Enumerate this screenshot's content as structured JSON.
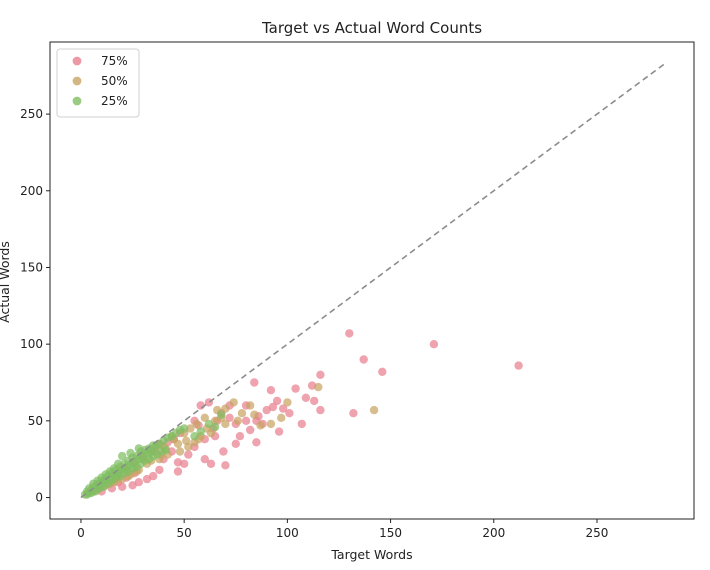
{
  "chart_data": {
    "type": "scatter",
    "title": "Target vs Actual Word Counts",
    "xlabel": "Target Words",
    "ylabel": "Actual Words",
    "xlim": [
      -15,
      297
    ],
    "ylim": [
      -14,
      297
    ],
    "xticks": [
      0,
      50,
      100,
      150,
      200,
      250
    ],
    "yticks": [
      0,
      50,
      100,
      150,
      200,
      250
    ],
    "grid": false,
    "legend_position": "top-left",
    "reference_line": {
      "from": [
        0,
        0
      ],
      "to": [
        283,
        283
      ],
      "style": "dashed",
      "color": "#8c8c8c"
    },
    "series": [
      {
        "name": "75%",
        "color": "#e8808f",
        "points": [
          [
            130,
            107
          ],
          [
            171,
            100
          ],
          [
            212,
            86
          ],
          [
            137,
            90
          ],
          [
            146,
            82
          ],
          [
            132,
            55
          ],
          [
            116,
            80
          ],
          [
            112,
            73
          ],
          [
            104,
            71
          ],
          [
            113,
            63
          ],
          [
            109,
            65
          ],
          [
            95,
            63
          ],
          [
            98,
            58
          ],
          [
            93,
            59
          ],
          [
            90,
            57
          ],
          [
            86,
            53
          ],
          [
            85,
            36
          ],
          [
            96,
            43
          ],
          [
            88,
            48
          ],
          [
            80,
            50
          ],
          [
            82,
            44
          ],
          [
            75,
            48
          ],
          [
            72,
            52
          ],
          [
            77,
            40
          ],
          [
            69,
            30
          ],
          [
            63,
            22
          ],
          [
            70,
            21
          ],
          [
            62,
            62
          ],
          [
            58,
            60
          ],
          [
            68,
            55
          ],
          [
            64,
            45
          ],
          [
            60,
            38
          ],
          [
            55,
            33
          ],
          [
            52,
            28
          ],
          [
            50,
            22
          ],
          [
            47,
            17
          ],
          [
            44,
            30
          ],
          [
            40,
            25
          ],
          [
            38,
            18
          ],
          [
            35,
            14
          ],
          [
            32,
            12
          ],
          [
            28,
            10
          ],
          [
            25,
            8
          ],
          [
            20,
            7
          ],
          [
            15,
            6
          ],
          [
            10,
            4
          ],
          [
            55,
            50
          ],
          [
            48,
            42
          ],
          [
            42,
            36
          ],
          [
            36,
            30
          ],
          [
            30,
            26
          ],
          [
            66,
            50
          ],
          [
            72,
            60
          ],
          [
            84,
            75
          ],
          [
            101,
            55
          ],
          [
            107,
            48
          ],
          [
            116,
            57
          ],
          [
            92,
            70
          ],
          [
            80,
            60
          ],
          [
            57,
            47
          ],
          [
            45,
            38
          ],
          [
            38,
            35
          ],
          [
            26,
            16
          ],
          [
            22,
            13
          ],
          [
            18,
            10
          ],
          [
            65,
            40
          ],
          [
            85,
            50
          ],
          [
            75,
            35
          ],
          [
            60,
            25
          ],
          [
            47,
            23
          ]
        ]
      },
      {
        "name": "50%",
        "color": "#c9a464",
        "points": [
          [
            142,
            57
          ],
          [
            115,
            72
          ],
          [
            100,
            62
          ],
          [
            92,
            48
          ],
          [
            97,
            52
          ],
          [
            87,
            47
          ],
          [
            82,
            60
          ],
          [
            78,
            55
          ],
          [
            74,
            62
          ],
          [
            70,
            58
          ],
          [
            65,
            50
          ],
          [
            61,
            45
          ],
          [
            58,
            40
          ],
          [
            55,
            36
          ],
          [
            52,
            33
          ],
          [
            50,
            42
          ],
          [
            48,
            30
          ],
          [
            45,
            38
          ],
          [
            42,
            28
          ],
          [
            40,
            33
          ],
          [
            38,
            25
          ],
          [
            35,
            30
          ],
          [
            32,
            22
          ],
          [
            30,
            25
          ],
          [
            28,
            18
          ],
          [
            26,
            22
          ],
          [
            24,
            15
          ],
          [
            22,
            18
          ],
          [
            20,
            12
          ],
          [
            18,
            14
          ],
          [
            16,
            10
          ],
          [
            14,
            9
          ],
          [
            12,
            8
          ],
          [
            10,
            7
          ],
          [
            8,
            5
          ],
          [
            6,
            4
          ],
          [
            60,
            52
          ],
          [
            56,
            48
          ],
          [
            53,
            45
          ],
          [
            66,
            57
          ],
          [
            70,
            48
          ],
          [
            76,
            50
          ],
          [
            84,
            54
          ],
          [
            44,
            40
          ],
          [
            37,
            34
          ],
          [
            33,
            29
          ],
          [
            29,
            27
          ],
          [
            25,
            23
          ],
          [
            21,
            19
          ],
          [
            47,
            35
          ],
          [
            39,
            28
          ],
          [
            34,
            24
          ],
          [
            27,
            17
          ],
          [
            23,
            14
          ],
          [
            17,
            11
          ],
          [
            63,
            42
          ],
          [
            68,
            52
          ],
          [
            57,
            38
          ],
          [
            51,
            37
          ],
          [
            41,
            32
          ]
        ]
      },
      {
        "name": "25%",
        "color": "#80be63",
        "points": [
          [
            2,
            2
          ],
          [
            3,
            4
          ],
          [
            4,
            3
          ],
          [
            5,
            5
          ],
          [
            6,
            7
          ],
          [
            7,
            6
          ],
          [
            8,
            9
          ],
          [
            9,
            8
          ],
          [
            10,
            11
          ],
          [
            11,
            10
          ],
          [
            12,
            12
          ],
          [
            13,
            14
          ],
          [
            14,
            12
          ],
          [
            15,
            16
          ],
          [
            16,
            15
          ],
          [
            17,
            18
          ],
          [
            18,
            16
          ],
          [
            19,
            20
          ],
          [
            20,
            18
          ],
          [
            21,
            22
          ],
          [
            22,
            20
          ],
          [
            23,
            24
          ],
          [
            24,
            21
          ],
          [
            25,
            26
          ],
          [
            26,
            23
          ],
          [
            27,
            27
          ],
          [
            28,
            25
          ],
          [
            29,
            30
          ],
          [
            30,
            27
          ],
          [
            31,
            31
          ],
          [
            32,
            29
          ],
          [
            33,
            32
          ],
          [
            34,
            30
          ],
          [
            35,
            34
          ],
          [
            36,
            33
          ],
          [
            38,
            35
          ],
          [
            40,
            37
          ],
          [
            42,
            39
          ],
          [
            44,
            40
          ],
          [
            46,
            42
          ],
          [
            48,
            44
          ],
          [
            50,
            45
          ],
          [
            55,
            40
          ],
          [
            58,
            43
          ],
          [
            62,
            48
          ],
          [
            65,
            46
          ],
          [
            68,
            54
          ],
          [
            20,
            27
          ],
          [
            24,
            29
          ],
          [
            28,
            32
          ],
          [
            18,
            22
          ],
          [
            16,
            19
          ],
          [
            14,
            17
          ],
          [
            12,
            15
          ],
          [
            10,
            13
          ],
          [
            8,
            11
          ],
          [
            6,
            9
          ],
          [
            4,
            6
          ],
          [
            3,
            2
          ],
          [
            5,
            3
          ],
          [
            7,
            4
          ],
          [
            9,
            6
          ],
          [
            11,
            7
          ],
          [
            13,
            9
          ],
          [
            15,
            11
          ],
          [
            17,
            13
          ],
          [
            19,
            14
          ],
          [
            21,
            16
          ],
          [
            23,
            17
          ],
          [
            25,
            19
          ],
          [
            27,
            20
          ],
          [
            29,
            22
          ],
          [
            31,
            24
          ],
          [
            33,
            25
          ],
          [
            35,
            27
          ],
          [
            37,
            28
          ],
          [
            39,
            30
          ],
          [
            41,
            31
          ]
        ]
      }
    ]
  }
}
